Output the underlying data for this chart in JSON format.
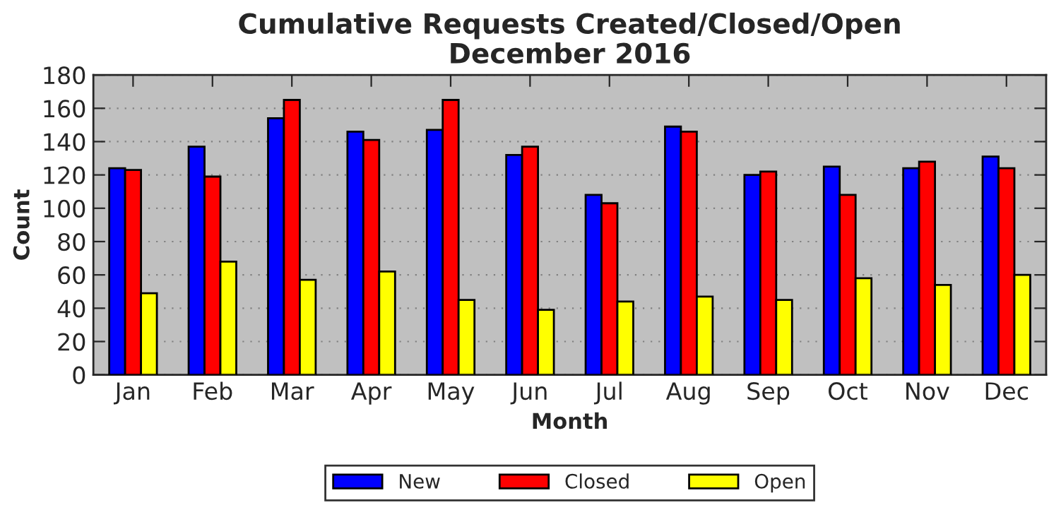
{
  "chart_data": {
    "type": "bar",
    "title": "Cumulative Requests Created/Closed/Open\nDecember 2016",
    "xlabel": "Month",
    "ylabel": "Count",
    "categories": [
      "Jan",
      "Feb",
      "Mar",
      "Apr",
      "May",
      "Jun",
      "Jul",
      "Aug",
      "Sep",
      "Oct",
      "Nov",
      "Dec"
    ],
    "series": [
      {
        "name": "New",
        "color": "#0000ff",
        "values": [
          124,
          137,
          154,
          146,
          147,
          132,
          108,
          149,
          120,
          125,
          124,
          131
        ]
      },
      {
        "name": "Closed",
        "color": "#ff0000",
        "values": [
          123,
          119,
          165,
          141,
          165,
          137,
          103,
          146,
          122,
          108,
          128,
          124
        ]
      },
      {
        "name": "Open",
        "color": "#ffff00",
        "values": [
          49,
          68,
          57,
          62,
          45,
          39,
          44,
          47,
          45,
          58,
          54,
          60
        ]
      }
    ],
    "ylim": [
      0,
      180
    ],
    "yticks": [
      0,
      20,
      40,
      60,
      80,
      100,
      120,
      140,
      160,
      180
    ],
    "grid": "y",
    "legend": "bottom"
  }
}
